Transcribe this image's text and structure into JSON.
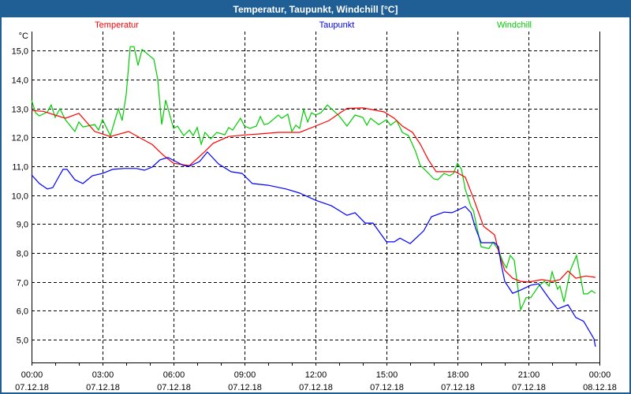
{
  "window": {
    "title": "Temperatur, Taupunkt, Windchill [°C]"
  },
  "chart_data": {
    "type": "line",
    "title": "Temperatur, Taupunkt, Windchill [°C]",
    "ylabel": "°C",
    "xlabel": "",
    "xlim_hours": [
      0,
      24
    ],
    "ylim": [
      4.2,
      15.66
    ],
    "grid": true,
    "legend_placement": "top",
    "y_ticks": [
      "15,0",
      "14,0",
      "13,0",
      "12,0",
      "11,0",
      "10,0",
      "9,0",
      "8,0",
      "7,0",
      "6,0",
      "5,0"
    ],
    "y_tick_values": [
      15,
      14,
      13,
      12,
      11,
      10,
      9,
      8,
      7,
      6,
      5
    ],
    "x_ticks": [
      {
        "hour": 0,
        "time": "00:00",
        "date": "07.12.18"
      },
      {
        "hour": 3,
        "time": "03:00",
        "date": "07.12.18"
      },
      {
        "hour": 6,
        "time": "06:00",
        "date": "07.12.18"
      },
      {
        "hour": 9,
        "time": "09:00",
        "date": "07.12.18"
      },
      {
        "hour": 12,
        "time": "12:00",
        "date": "07.12.18"
      },
      {
        "hour": 15,
        "time": "15:00",
        "date": "07.12.18"
      },
      {
        "hour": 18,
        "time": "18:00",
        "date": "07.12.18"
      },
      {
        "hour": 21,
        "time": "21:00",
        "date": "07.12.18"
      },
      {
        "hour": 24,
        "time": "00:00",
        "date": "08.12.18"
      }
    ],
    "series": [
      {
        "name": "Temperatur",
        "color": "#ff0000",
        "x": [
          0,
          0.5,
          1.43,
          2,
          2.67,
          3.33,
          4.1,
          4.9,
          5.1,
          5.57,
          6,
          6.67,
          7.33,
          7.67,
          8.33,
          9,
          9.67,
          10.43,
          11.33,
          12,
          12.57,
          13.1,
          13.33,
          14,
          14.9,
          15.33,
          15.67,
          16.1,
          16.43,
          16.77,
          17.1,
          17.9,
          18.33,
          18.67,
          19.1,
          19.57,
          19.77,
          20,
          20.33,
          20.67,
          21,
          21.57,
          22,
          22.33,
          22.67,
          23,
          23.43,
          23.83
        ],
        "y": [
          12.93,
          12.9,
          12.66,
          12.83,
          12.2,
          12.03,
          12.2,
          11.84,
          11.75,
          11.38,
          11.1,
          11.02,
          11.51,
          11.79,
          12.03,
          12.08,
          12.12,
          12.17,
          12.17,
          12.39,
          12.58,
          12.88,
          13.0,
          13.02,
          12.88,
          12.66,
          12.39,
          12.17,
          11.76,
          11.22,
          10.81,
          10.81,
          10.62,
          9.9,
          8.92,
          8.62,
          7.94,
          7.39,
          7.12,
          7.01,
          6.99,
          7.07,
          7.01,
          7.07,
          7.37,
          7.12,
          7.2,
          7.15
        ]
      },
      {
        "name": "Taupunkt",
        "color": "#0000ff",
        "x": [
          0,
          0.33,
          0.67,
          0.9,
          1.1,
          1.33,
          1.5,
          1.83,
          2.17,
          2.57,
          3,
          3.43,
          3.9,
          4.43,
          4.77,
          5.1,
          5.43,
          5.77,
          6.1,
          6.43,
          6.67,
          7.1,
          7.43,
          7.9,
          8.43,
          8.9,
          9.33,
          10,
          10.77,
          11.33,
          12,
          12.67,
          13.33,
          13.67,
          14.1,
          14.43,
          15,
          15.33,
          15.57,
          16,
          16.57,
          16.9,
          17.43,
          17.77,
          18.33,
          18.57,
          18.77,
          19,
          19.57,
          19.73,
          19.83,
          20,
          20.33,
          20.67,
          21.1,
          21.43,
          21.9,
          22.23,
          22.67,
          23,
          23.33,
          23.77,
          23.83
        ],
        "y": [
          10.7,
          10.4,
          10.21,
          10.26,
          10.56,
          10.89,
          10.89,
          10.53,
          10.4,
          10.67,
          10.75,
          10.89,
          10.92,
          10.92,
          10.86,
          10.97,
          11.22,
          11.3,
          11.16,
          11.02,
          11.0,
          11.16,
          11.49,
          11.08,
          10.81,
          10.75,
          10.4,
          10.34,
          10.21,
          10.07,
          9.82,
          9.63,
          9.3,
          9.39,
          9.03,
          9.03,
          8.38,
          8.38,
          8.51,
          8.32,
          8.76,
          9.25,
          9.41,
          9.39,
          9.6,
          9.39,
          8.84,
          8.35,
          8.35,
          8.21,
          7.67,
          7.01,
          6.6,
          6.71,
          6.88,
          6.93,
          6.39,
          6.06,
          6.2,
          5.76,
          5.63,
          5.02,
          4.75
        ]
      },
      {
        "name": "Windchill",
        "color": "#00cc00",
        "x": [
          0,
          0.17,
          0.33,
          0.67,
          0.83,
          1,
          1.2,
          1.43,
          1.83,
          2,
          2.17,
          2.67,
          2.83,
          3,
          3.33,
          3.67,
          3.83,
          4,
          4.17,
          4.33,
          4.5,
          4.67,
          5.17,
          5.33,
          5.5,
          5.67,
          6,
          6.17,
          6.43,
          6.67,
          6.83,
          7,
          7.17,
          7.33,
          7.57,
          7.83,
          8.17,
          8.33,
          8.5,
          8.83,
          9,
          9.23,
          9.5,
          9.67,
          9.83,
          10,
          10.43,
          10.57,
          10.83,
          11,
          11.17,
          11.33,
          11.5,
          11.67,
          11.83,
          12,
          12.23,
          12.5,
          13,
          13.33,
          13.67,
          14,
          14.17,
          14.33,
          14.67,
          15,
          15.17,
          15.43,
          15.67,
          15.93,
          16.23,
          16.43,
          16.57,
          17,
          17.17,
          17.43,
          17.67,
          17.83,
          18,
          18.17,
          18.33,
          18.57,
          18.67,
          19,
          19.33,
          19.5,
          19.73,
          19.93,
          20.07,
          20.23,
          20.4,
          20.67,
          20.9,
          21.1,
          21.43,
          21.67,
          21.87,
          22,
          22.23,
          22.33,
          22.5,
          22.77,
          23.03,
          23.33,
          23.5,
          23.67,
          23.83
        ],
        "y": [
          13.29,
          12.85,
          12.74,
          12.88,
          13.12,
          12.69,
          12.99,
          12.61,
          12.2,
          12.53,
          12.36,
          12.44,
          12.25,
          12.61,
          12.06,
          12.99,
          12.58,
          13.48,
          15.14,
          15.14,
          14.49,
          15.04,
          14.7,
          14.02,
          12.44,
          13.29,
          12.31,
          12.39,
          12.06,
          12.25,
          12.06,
          12.34,
          11.76,
          12.17,
          11.95,
          12.17,
          12.09,
          12.34,
          12.25,
          12.66,
          12.39,
          12.31,
          12.39,
          12.72,
          12.44,
          12.47,
          12.77,
          12.66,
          12.8,
          12.2,
          12.42,
          12.31,
          12.96,
          12.53,
          12.85,
          12.77,
          12.85,
          13.12,
          12.74,
          12.39,
          12.77,
          12.69,
          12.42,
          12.66,
          12.44,
          12.61,
          12.42,
          12.58,
          12.17,
          12.06,
          11.51,
          11.02,
          10.92,
          10.56,
          10.53,
          10.75,
          10.67,
          10.75,
          11.1,
          10.89,
          10.2,
          9.6,
          9.47,
          8.21,
          8.15,
          8.37,
          8.1,
          7.67,
          7.48,
          7.91,
          7.74,
          6.03,
          6.45,
          6.45,
          6.85,
          7.01,
          6.85,
          7.34,
          6.74,
          6.85,
          6.3,
          7.39,
          7.91,
          6.58,
          6.58,
          6.69,
          6.6
        ]
      }
    ]
  }
}
